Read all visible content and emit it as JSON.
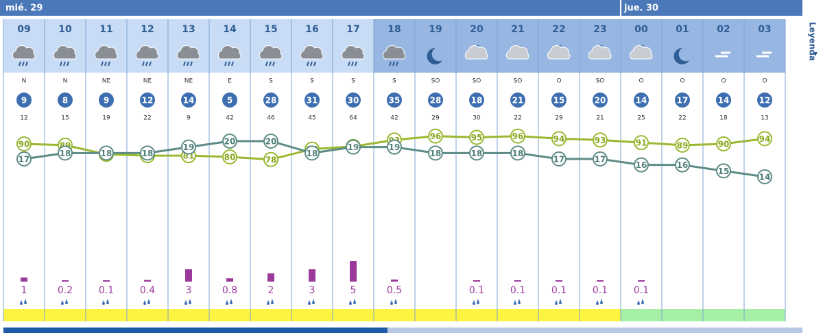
{
  "days": [
    {
      "label": "mié. 29"
    },
    {
      "label": "jue. 30"
    }
  ],
  "legend": "Leyenda",
  "hours": [
    {
      "hour": "09",
      "wind_dir": "N",
      "wind": 9,
      "gust": 12,
      "temp": 17,
      "humidity": 90,
      "precip": 1
    },
    {
      "hour": "10",
      "wind_dir": "N",
      "wind": 8,
      "gust": 15,
      "temp": 18,
      "humidity": 89,
      "precip": 0.2
    },
    {
      "hour": "11",
      "wind_dir": "NE",
      "wind": 9,
      "gust": 19,
      "temp": 18,
      "humidity": 82,
      "precip": 0.1
    },
    {
      "hour": "12",
      "wind_dir": "NE",
      "wind": 12,
      "gust": 22,
      "temp": 18,
      "humidity": 81,
      "precip": 0.4
    },
    {
      "hour": "13",
      "wind_dir": "NE",
      "wind": 14,
      "gust": 9,
      "temp": 19,
      "humidity": 81,
      "precip": 3
    },
    {
      "hour": "14",
      "wind_dir": "E",
      "wind": 5,
      "gust": 42,
      "temp": 20,
      "humidity": 80,
      "precip": 0.8
    },
    {
      "hour": "15",
      "wind_dir": "S",
      "wind": 28,
      "gust": 46,
      "temp": 20,
      "humidity": 78,
      "precip": 2
    },
    {
      "hour": "16",
      "wind_dir": "S",
      "wind": 31,
      "gust": 45,
      "temp": 18,
      "humidity": 86,
      "precip": 3
    },
    {
      "hour": "17",
      "wind_dir": "S",
      "wind": 30,
      "gust": 64,
      "temp": 19,
      "humidity": 88,
      "precip": 5
    },
    {
      "hour": "18",
      "wind_dir": "S",
      "wind": 35,
      "gust": 42,
      "temp": 19,
      "humidity": 93,
      "precip": 0.5
    },
    {
      "hour": "19",
      "wind_dir": "SO",
      "wind": 28,
      "gust": 29,
      "temp": 18,
      "humidity": 96,
      "precip": null
    },
    {
      "hour": "20",
      "wind_dir": "SO",
      "wind": 18,
      "gust": 30,
      "temp": 18,
      "humidity": 95,
      "precip": 0.1
    },
    {
      "hour": "21",
      "wind_dir": "SO",
      "wind": 21,
      "gust": 22,
      "temp": 18,
      "humidity": 96,
      "precip": 0.1
    },
    {
      "hour": "22",
      "wind_dir": "O",
      "wind": 15,
      "gust": 29,
      "temp": 17,
      "humidity": 94,
      "precip": 0.1
    },
    {
      "hour": "23",
      "wind_dir": "SO",
      "wind": 20,
      "gust": 21,
      "temp": 17,
      "humidity": 93,
      "precip": 0.1
    },
    {
      "hour": "00",
      "wind_dir": "O",
      "wind": 14,
      "gust": 25,
      "temp": 16,
      "humidity": 91,
      "precip": 0.1
    },
    {
      "hour": "01",
      "wind_dir": "O",
      "wind": 17,
      "gust": 22,
      "temp": 16,
      "humidity": 89,
      "precip": null
    },
    {
      "hour": "02",
      "wind_dir": "O",
      "wind": 14,
      "gust": 18,
      "temp": 15,
      "humidity": 90,
      "precip": null
    },
    {
      "hour": "03",
      "wind_dir": "O",
      "wind": 12,
      "gust": 13,
      "temp": 14,
      "humidity": 94,
      "precip": null
    }
  ]
}
